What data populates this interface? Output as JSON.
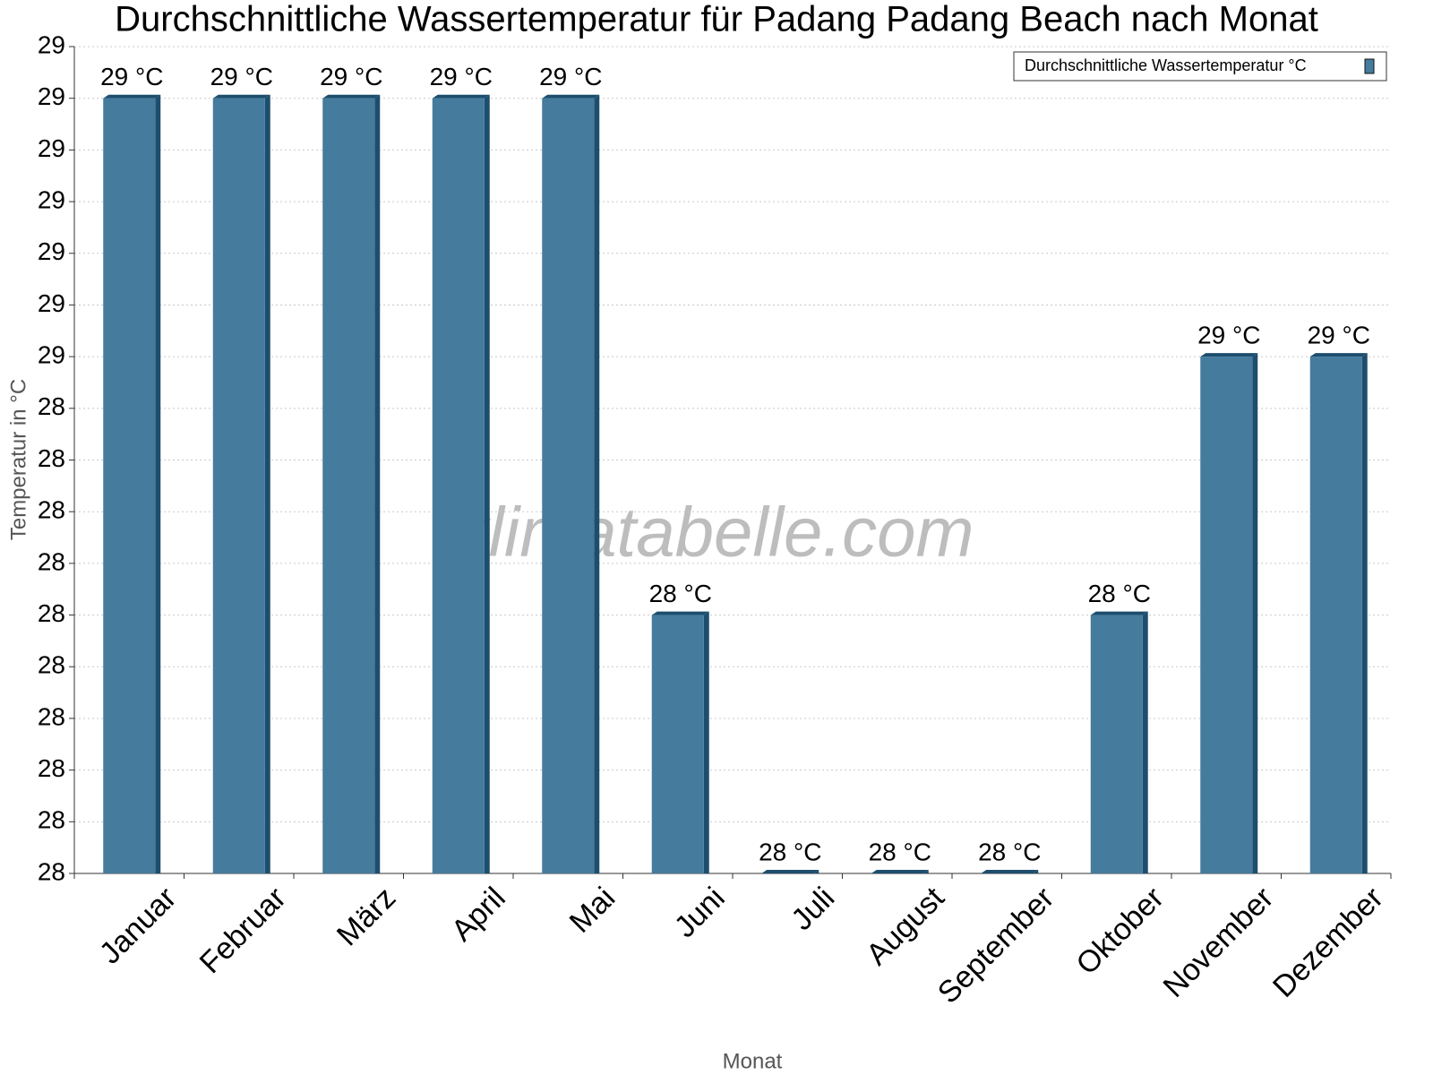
{
  "chart_data": {
    "type": "bar",
    "title": "Durchschnittliche Wassertemperatur für Padang Padang Beach nach Monat",
    "x_label": "Monat",
    "y_label": "Temperatur in °C",
    "watermark": "klimatabelle.com",
    "categories": [
      "Januar",
      "Februar",
      "März",
      "April",
      "Mai",
      "Juni",
      "Juli",
      "August",
      "September",
      "Oktober",
      "November",
      "Dezember"
    ],
    "series": [
      {
        "name": "Durchschnittliche Wassertemperatur °C",
        "color": "#457b9d",
        "side_color": "#1d4e6e",
        "values": [
          28.75,
          28.75,
          28.75,
          28.75,
          28.75,
          28.25,
          28.0,
          28.0,
          28.0,
          28.25,
          28.5,
          28.5
        ],
        "value_labels": [
          "29 °C",
          "29 °C",
          "29 °C",
          "29 °C",
          "29 °C",
          "28 °C",
          "28 °C",
          "28 °C",
          "28 °C",
          "28 °C",
          "29 °C",
          "29 °C"
        ]
      }
    ],
    "ylim": [
      28.0,
      28.8
    ],
    "yticks": [
      {
        "value": 28.0,
        "label": "28"
      },
      {
        "value": 28.05,
        "label": "28"
      },
      {
        "value": 28.1,
        "label": "28"
      },
      {
        "value": 28.15,
        "label": "28"
      },
      {
        "value": 28.2,
        "label": "28"
      },
      {
        "value": 28.25,
        "label": "28"
      },
      {
        "value": 28.3,
        "label": "28"
      },
      {
        "value": 28.35,
        "label": "28"
      },
      {
        "value": 28.4,
        "label": "28"
      },
      {
        "value": 28.45,
        "label": "28"
      },
      {
        "value": 28.5,
        "label": "29"
      },
      {
        "value": 28.55,
        "label": "29"
      },
      {
        "value": 28.6,
        "label": "29"
      },
      {
        "value": 28.65,
        "label": "29"
      },
      {
        "value": 28.7,
        "label": "29"
      },
      {
        "value": 28.75,
        "label": "29"
      },
      {
        "value": 28.8,
        "label": "29"
      }
    ],
    "grid": true,
    "legend_position": "top-right"
  }
}
